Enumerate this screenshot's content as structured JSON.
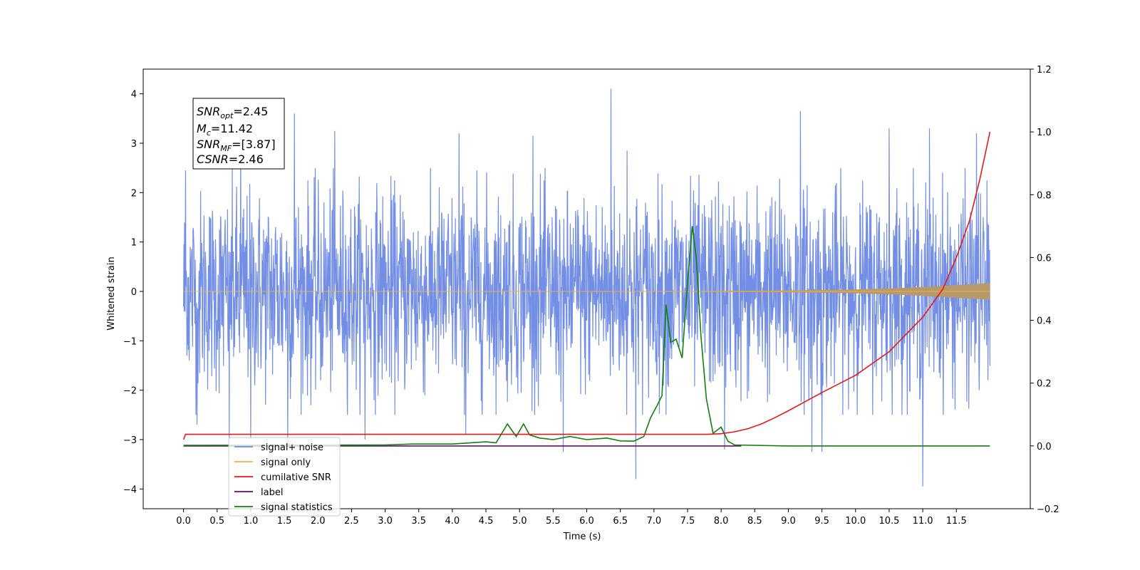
{
  "chart_data": {
    "type": "line",
    "xlabel": "Time (s)",
    "ylabel_left": "Whitened strain",
    "ylabel_right": "",
    "xlim": [
      -0.6,
      12.6
    ],
    "ylim_left": [
      -4.4,
      4.5
    ],
    "ylim_right": [
      -0.2,
      1.2
    ],
    "x_ticks": [
      "0.0",
      "0.5",
      "1.0",
      "1.5",
      "2.0",
      "2.5",
      "3.0",
      "3.5",
      "4.0",
      "4.5",
      "5.0",
      "5.5",
      "6.0",
      "6.5",
      "7.0",
      "7.5",
      "8.0",
      "8.5",
      "9.0",
      "9.5",
      "10.0",
      "10.5",
      "11.0",
      "11.5"
    ],
    "y_ticks_left": [
      "4",
      "3",
      "2",
      "1",
      "0",
      "−1",
      "−2",
      "−3",
      "−4"
    ],
    "y_ticks_right": [
      "1.2",
      "1.0",
      "0.8",
      "0.6",
      "0.4",
      "0.2",
      "0.0",
      "−0.2"
    ],
    "grid": false,
    "legend_position": "lower-left",
    "colors": {
      "signal_noise": "#6b88e4",
      "signal_only": "#f5b041",
      "signal_envelope": "#b8996a",
      "cumulative_snr": "#e31a1c",
      "label": "#6a0d6f",
      "signal_statistics": "#108010"
    },
    "annotation": {
      "snr_opt": {
        "name": "SNR",
        "sub": "opt",
        "value": "=2.45"
      },
      "mc": {
        "name": "M",
        "sub": "c",
        "value": "=11.42"
      },
      "snr_mf": {
        "name": "SNR",
        "sub": "MF",
        "value": "=[3.87]"
      },
      "csnr": {
        "name": "CSNR",
        "sub": "",
        "value": "=2.46"
      }
    },
    "series": [
      {
        "name": "signal+ noise",
        "axis": "left",
        "description_points": "noise band, random amplitude",
        "duration": [
          0,
          12.0
        ],
        "spikes": [
          {
            "x": 0.03,
            "y": 2.45
          },
          {
            "x": 0.05,
            "y": -1.3
          },
          {
            "x": 0.2,
            "y": -2.7
          },
          {
            "x": 0.68,
            "y": -3.0
          },
          {
            "x": 0.85,
            "y": 3.3
          },
          {
            "x": 1.0,
            "y": -3.0
          },
          {
            "x": 1.65,
            "y": 3.6
          },
          {
            "x": 1.55,
            "y": -3.1
          },
          {
            "x": 2.25,
            "y": 3.25
          },
          {
            "x": 2.7,
            "y": -3.0
          },
          {
            "x": 4.1,
            "y": 3.2
          },
          {
            "x": 4.2,
            "y": -2.9
          },
          {
            "x": 5.2,
            "y": 3.15
          },
          {
            "x": 5.65,
            "y": -3.25
          },
          {
            "x": 6.36,
            "y": 4.1
          },
          {
            "x": 6.73,
            "y": -3.8
          },
          {
            "x": 6.6,
            "y": 2.85
          },
          {
            "x": 8.05,
            "y": -3.2
          },
          {
            "x": 9.18,
            "y": 3.65
          },
          {
            "x": 9.35,
            "y": -3.25
          },
          {
            "x": 9.5,
            "y": -3.25
          },
          {
            "x": 10.5,
            "y": 3.3
          },
          {
            "x": 11.0,
            "y": -3.95
          },
          {
            "x": 11.1,
            "y": 3.3
          },
          {
            "x": 11.8,
            "y": 3.2
          }
        ]
      },
      {
        "name": "signal only",
        "axis": "left",
        "envelope": [
          {
            "x": 0.0,
            "y": 0.0
          },
          {
            "x": 7.5,
            "y": 0.005
          },
          {
            "x": 9.0,
            "y": 0.02
          },
          {
            "x": 10.0,
            "y": 0.04
          },
          {
            "x": 10.5,
            "y": 0.06
          },
          {
            "x": 11.0,
            "y": 0.09
          },
          {
            "x": 11.5,
            "y": 0.13
          },
          {
            "x": 12.0,
            "y": 0.17
          }
        ]
      },
      {
        "name": "cumilative SNR",
        "axis": "right",
        "points": [
          {
            "x": 0.0,
            "y": 0.02
          },
          {
            "x": 0.03,
            "y": 0.037
          },
          {
            "x": 5.0,
            "y": 0.037
          },
          {
            "x": 7.8,
            "y": 0.037
          },
          {
            "x": 8.0,
            "y": 0.039
          },
          {
            "x": 8.2,
            "y": 0.045
          },
          {
            "x": 8.4,
            "y": 0.055
          },
          {
            "x": 8.6,
            "y": 0.07
          },
          {
            "x": 8.8,
            "y": 0.09
          },
          {
            "x": 9.0,
            "y": 0.112
          },
          {
            "x": 9.5,
            "y": 0.17
          },
          {
            "x": 10.0,
            "y": 0.225
          },
          {
            "x": 10.5,
            "y": 0.3
          },
          {
            "x": 11.0,
            "y": 0.41
          },
          {
            "x": 11.3,
            "y": 0.5
          },
          {
            "x": 11.5,
            "y": 0.6
          },
          {
            "x": 11.7,
            "y": 0.72
          },
          {
            "x": 11.85,
            "y": 0.85
          },
          {
            "x": 12.0,
            "y": 1.0
          }
        ]
      },
      {
        "name": "label",
        "axis": "right",
        "points": [
          {
            "x": 0.0,
            "y": 0.0
          },
          {
            "x": 8.3,
            "y": 0.0
          }
        ]
      },
      {
        "name": "signal statistics",
        "axis": "right",
        "points": [
          {
            "x": 0.0,
            "y": 0.002
          },
          {
            "x": 3.0,
            "y": 0.003
          },
          {
            "x": 3.4,
            "y": 0.006
          },
          {
            "x": 4.0,
            "y": 0.006
          },
          {
            "x": 4.5,
            "y": 0.013
          },
          {
            "x": 4.65,
            "y": 0.01
          },
          {
            "x": 4.82,
            "y": 0.07
          },
          {
            "x": 4.95,
            "y": 0.03
          },
          {
            "x": 5.06,
            "y": 0.07
          },
          {
            "x": 5.15,
            "y": 0.035
          },
          {
            "x": 5.3,
            "y": 0.025
          },
          {
            "x": 5.5,
            "y": 0.02
          },
          {
            "x": 5.75,
            "y": 0.03
          },
          {
            "x": 6.0,
            "y": 0.02
          },
          {
            "x": 6.3,
            "y": 0.025
          },
          {
            "x": 6.5,
            "y": 0.016
          },
          {
            "x": 6.7,
            "y": 0.015
          },
          {
            "x": 6.85,
            "y": 0.03
          },
          {
            "x": 6.95,
            "y": 0.09
          },
          {
            "x": 7.05,
            "y": 0.13
          },
          {
            "x": 7.12,
            "y": 0.16
          },
          {
            "x": 7.18,
            "y": 0.45
          },
          {
            "x": 7.25,
            "y": 0.33
          },
          {
            "x": 7.33,
            "y": 0.34
          },
          {
            "x": 7.42,
            "y": 0.28
          },
          {
            "x": 7.5,
            "y": 0.52
          },
          {
            "x": 7.57,
            "y": 0.7
          },
          {
            "x": 7.63,
            "y": 0.6
          },
          {
            "x": 7.7,
            "y": 0.35
          },
          {
            "x": 7.78,
            "y": 0.15
          },
          {
            "x": 7.88,
            "y": 0.04
          },
          {
            "x": 8.0,
            "y": 0.06
          },
          {
            "x": 8.1,
            "y": 0.015
          },
          {
            "x": 8.2,
            "y": 0.003
          },
          {
            "x": 9.0,
            "y": 0.0
          },
          {
            "x": 12.0,
            "y": 0.0
          }
        ]
      }
    ],
    "legend": [
      {
        "label": "signal+ noise",
        "color": "#6b88e4"
      },
      {
        "label": "signal only",
        "color": "#f5b041"
      },
      {
        "label": "cumilative SNR",
        "color": "#e31a1c"
      },
      {
        "label": "label",
        "color": "#6a0d6f"
      },
      {
        "label": "signal statistics",
        "color": "#108010"
      }
    ]
  }
}
